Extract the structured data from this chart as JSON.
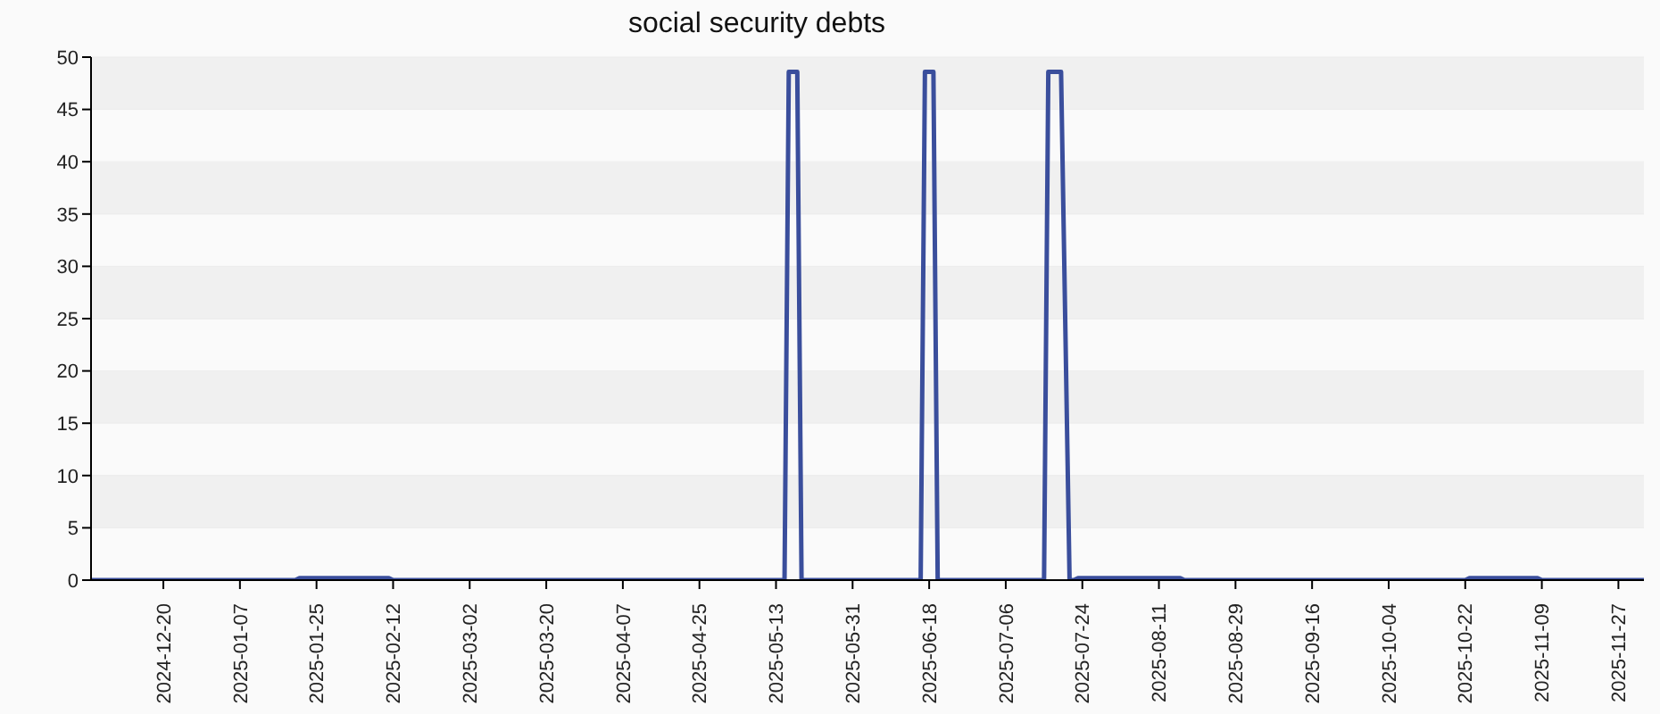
{
  "chart_data": {
    "type": "line",
    "title": "social security debts",
    "series": [
      {
        "color": "#3a4e9c",
        "x": [
          "2024-12-03",
          "2025-01-20",
          "2025-01-21",
          "2025-02-11",
          "2025-02-12",
          "2025-05-15",
          "2025-05-16",
          "2025-05-18",
          "2025-05-19",
          "2025-06-16",
          "2025-06-17",
          "2025-06-19",
          "2025-06-20",
          "2025-07-15",
          "2025-07-16",
          "2025-07-19",
          "2025-07-21",
          "2025-07-22",
          "2025-07-23",
          "2025-08-16",
          "2025-08-17",
          "2025-10-22",
          "2025-10-23",
          "2025-11-08",
          "2025-11-09",
          "2025-12-03"
        ],
        "values": [
          0,
          0,
          0.2,
          0.2,
          0,
          0,
          48.6,
          48.6,
          0,
          0,
          48.6,
          48.6,
          0,
          0,
          48.6,
          48.6,
          0,
          0,
          0.2,
          0.2,
          0,
          0,
          0.2,
          0.2,
          0,
          0
        ]
      }
    ],
    "xlim": [
      "2024-12-03",
      "2025-12-03"
    ],
    "xticks": [
      "2024-12-20",
      "2025-01-07",
      "2025-01-25",
      "2025-02-12",
      "2025-03-02",
      "2025-03-20",
      "2025-04-07",
      "2025-04-25",
      "2025-05-13",
      "2025-05-31",
      "2025-06-18",
      "2025-07-06",
      "2025-07-24",
      "2025-08-11",
      "2025-08-29",
      "2025-09-16",
      "2025-10-04",
      "2025-10-22",
      "2025-11-09",
      "2025-11-27"
    ],
    "ylim": [
      0,
      50
    ],
    "yticks": [
      0,
      5,
      10,
      15,
      20,
      25,
      30,
      35,
      40,
      45,
      50
    ],
    "grid": "y"
  }
}
